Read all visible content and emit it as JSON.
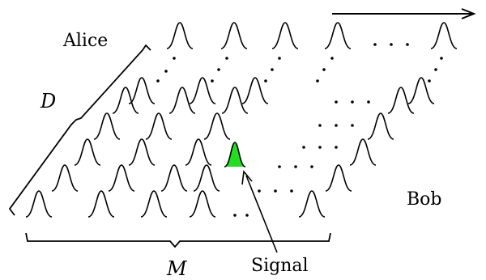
{
  "labels": {
    "alice": "Alice",
    "bob": "Bob",
    "d": "D",
    "m": "M",
    "signal": "Signal"
  },
  "colors": {
    "line": "#000000",
    "signal_fill": "#22dd22"
  }
}
